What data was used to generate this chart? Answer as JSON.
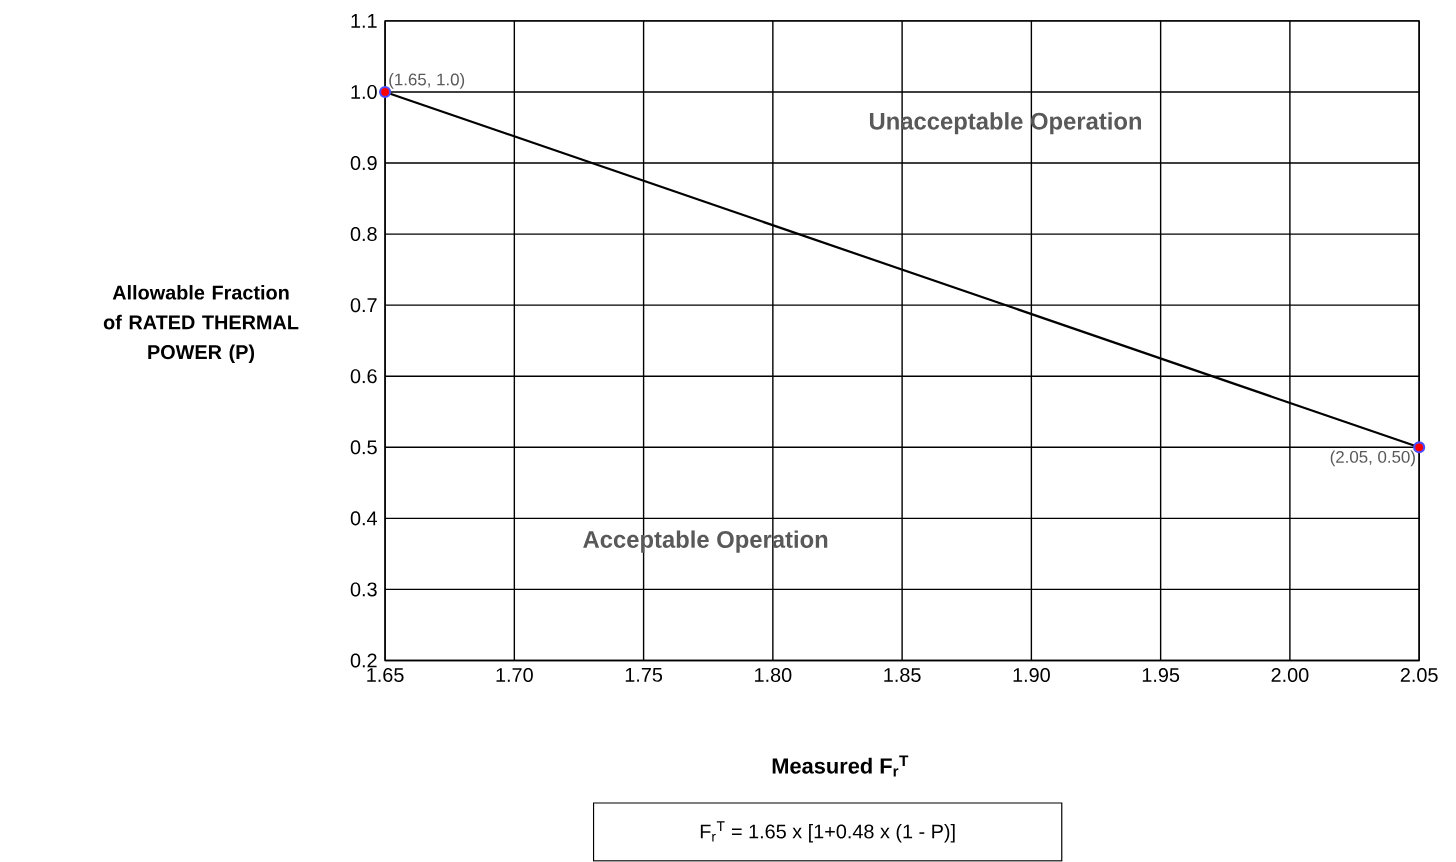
{
  "chart_data": {
    "type": "line",
    "xlabel": "Measured F$_{r}$$^{T}$",
    "ylabel": "Allowable Fraction of RATED THERMAL POWER (P)",
    "x": [
      1.65,
      2.05
    ],
    "values": [
      1.0,
      0.5
    ],
    "color": "#000000",
    "marker": "circle",
    "line_style": "solid",
    "value_labels": [
      "(1.65, 1.0)",
      "(2.05, 0.50)"
    ],
    "xlim": [
      1.65,
      2.05
    ],
    "ylim": [
      0.2,
      1.1
    ],
    "xticks": [
      {
        "value": 1.65,
        "label": "1.65"
      },
      {
        "value": 1.7,
        "label": "1.70"
      },
      {
        "value": 1.75,
        "label": "1.75"
      },
      {
        "value": 1.8,
        "label": "1.80"
      },
      {
        "value": 1.85,
        "label": "1.85"
      },
      {
        "value": 1.9,
        "label": "1.90"
      },
      {
        "value": 1.95,
        "label": "1.95"
      },
      {
        "value": 2.0,
        "label": "2.00"
      },
      {
        "value": 2.05,
        "label": "2.05"
      }
    ],
    "yticks": [
      {
        "value": 0.2,
        "label": "0.2"
      },
      {
        "value": 0.3,
        "label": "0.3"
      },
      {
        "value": 0.4,
        "label": "0.4"
      },
      {
        "value": 0.5,
        "label": "0.5"
      },
      {
        "value": 0.6,
        "label": "0.6"
      },
      {
        "value": 0.7,
        "label": "0.7"
      },
      {
        "value": 0.8,
        "label": "0.8"
      },
      {
        "value": 0.9,
        "label": "0.9"
      },
      {
        "value": 1.0,
        "label": "1.0"
      },
      {
        "value": 1.1,
        "label": "1.1"
      }
    ],
    "grid": true,
    "annotations": [
      "Unacceptable Operation",
      "Acceptable Operation",
      "F$_{r}$$^{T}$ = 1.65 x [1+0.48 x (1 - P)]"
    ]
  }
}
